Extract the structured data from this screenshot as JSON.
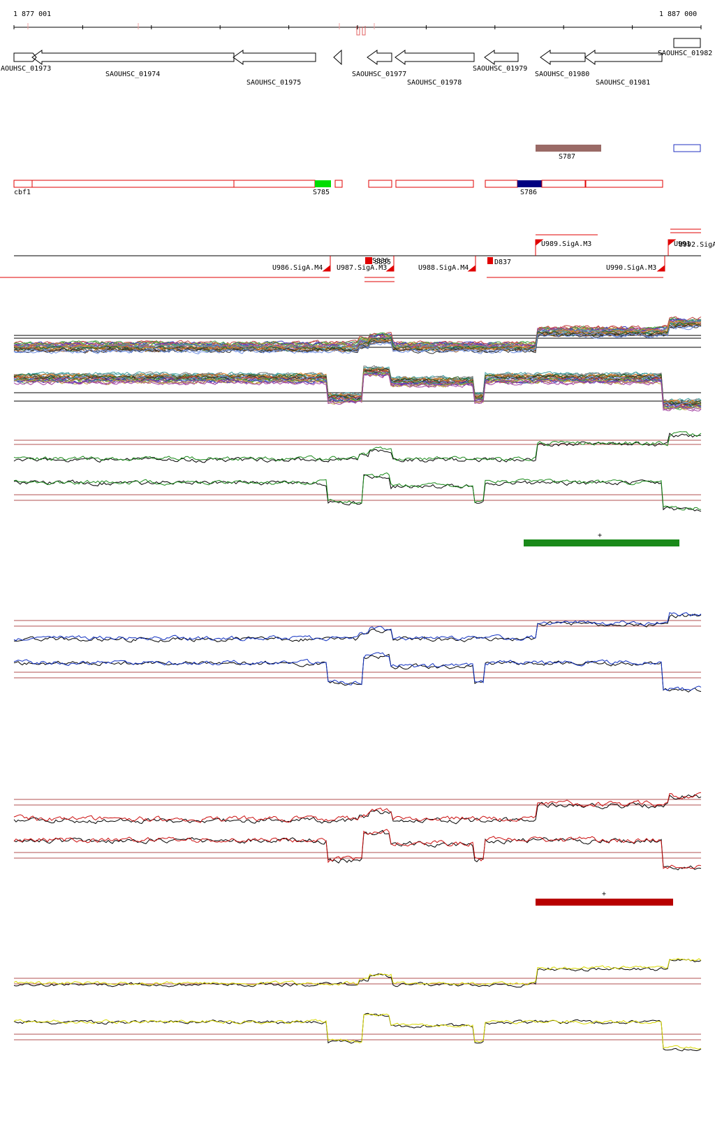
{
  "coordinates": {
    "start": "1 877 001",
    "end": "1 887 000"
  },
  "colors": {
    "gene_outline": "#000000",
    "feature_red": "#e00000",
    "s785_fill": "#00dd00",
    "s786_fill": "#000080",
    "s787_fill": "#9a6a66",
    "s_blue_outline": "#2030c0",
    "panel_green": "#1a8a1a",
    "panel_blue": "#1030c0",
    "panel_red": "#cc1010",
    "panel_yellow": "#d8d800",
    "ref_line": "#b05050"
  },
  "genes": [
    {
      "label": "AOUHSC_01973",
      "dir": "+"
    },
    {
      "label": "SAOUHSC_01974",
      "dir": "-"
    },
    {
      "label": "SAOUHSC_01975",
      "dir": "-"
    },
    {
      "label": "SAOUHSC_01977",
      "dir": "-"
    },
    {
      "label": "SAOUHSC_01978",
      "dir": "-"
    },
    {
      "label": "SAOUHSC_01979",
      "dir": "-"
    },
    {
      "label": "SAOUHSC_01980",
      "dir": "-"
    },
    {
      "label": "SAOUHSC_01981",
      "dir": "-"
    },
    {
      "label": "SAOUHSC_01982",
      "dir": "+"
    }
  ],
  "segments": {
    "row1": [
      {
        "label": "S787"
      }
    ],
    "row2": [
      {
        "label": "cbf1"
      },
      {
        "label": "S785"
      },
      {
        "label": "S786"
      }
    ]
  },
  "promoters": [
    {
      "label": "U986.SigA.M4",
      "strand": "-"
    },
    {
      "label": "U987.SigA.M3",
      "strand": "-"
    },
    {
      "label": "U988.SigA.M4",
      "strand": "-"
    },
    {
      "label": "U990.SigA.M3",
      "strand": "-"
    },
    {
      "label": "U989.SigA.M3",
      "strand": "+"
    },
    {
      "label": "U991",
      "strand": "+"
    },
    {
      "label": "U992.SigA",
      "strand": "+"
    },
    {
      "label": "S836",
      "strand": "-"
    },
    {
      "label": "S835",
      "strand": "-"
    },
    {
      "label": "D837",
      "strand": "-"
    }
  ],
  "condition_marks": [
    {
      "panel": "green",
      "label": "+"
    },
    {
      "panel": "red",
      "label": "+"
    }
  ]
}
